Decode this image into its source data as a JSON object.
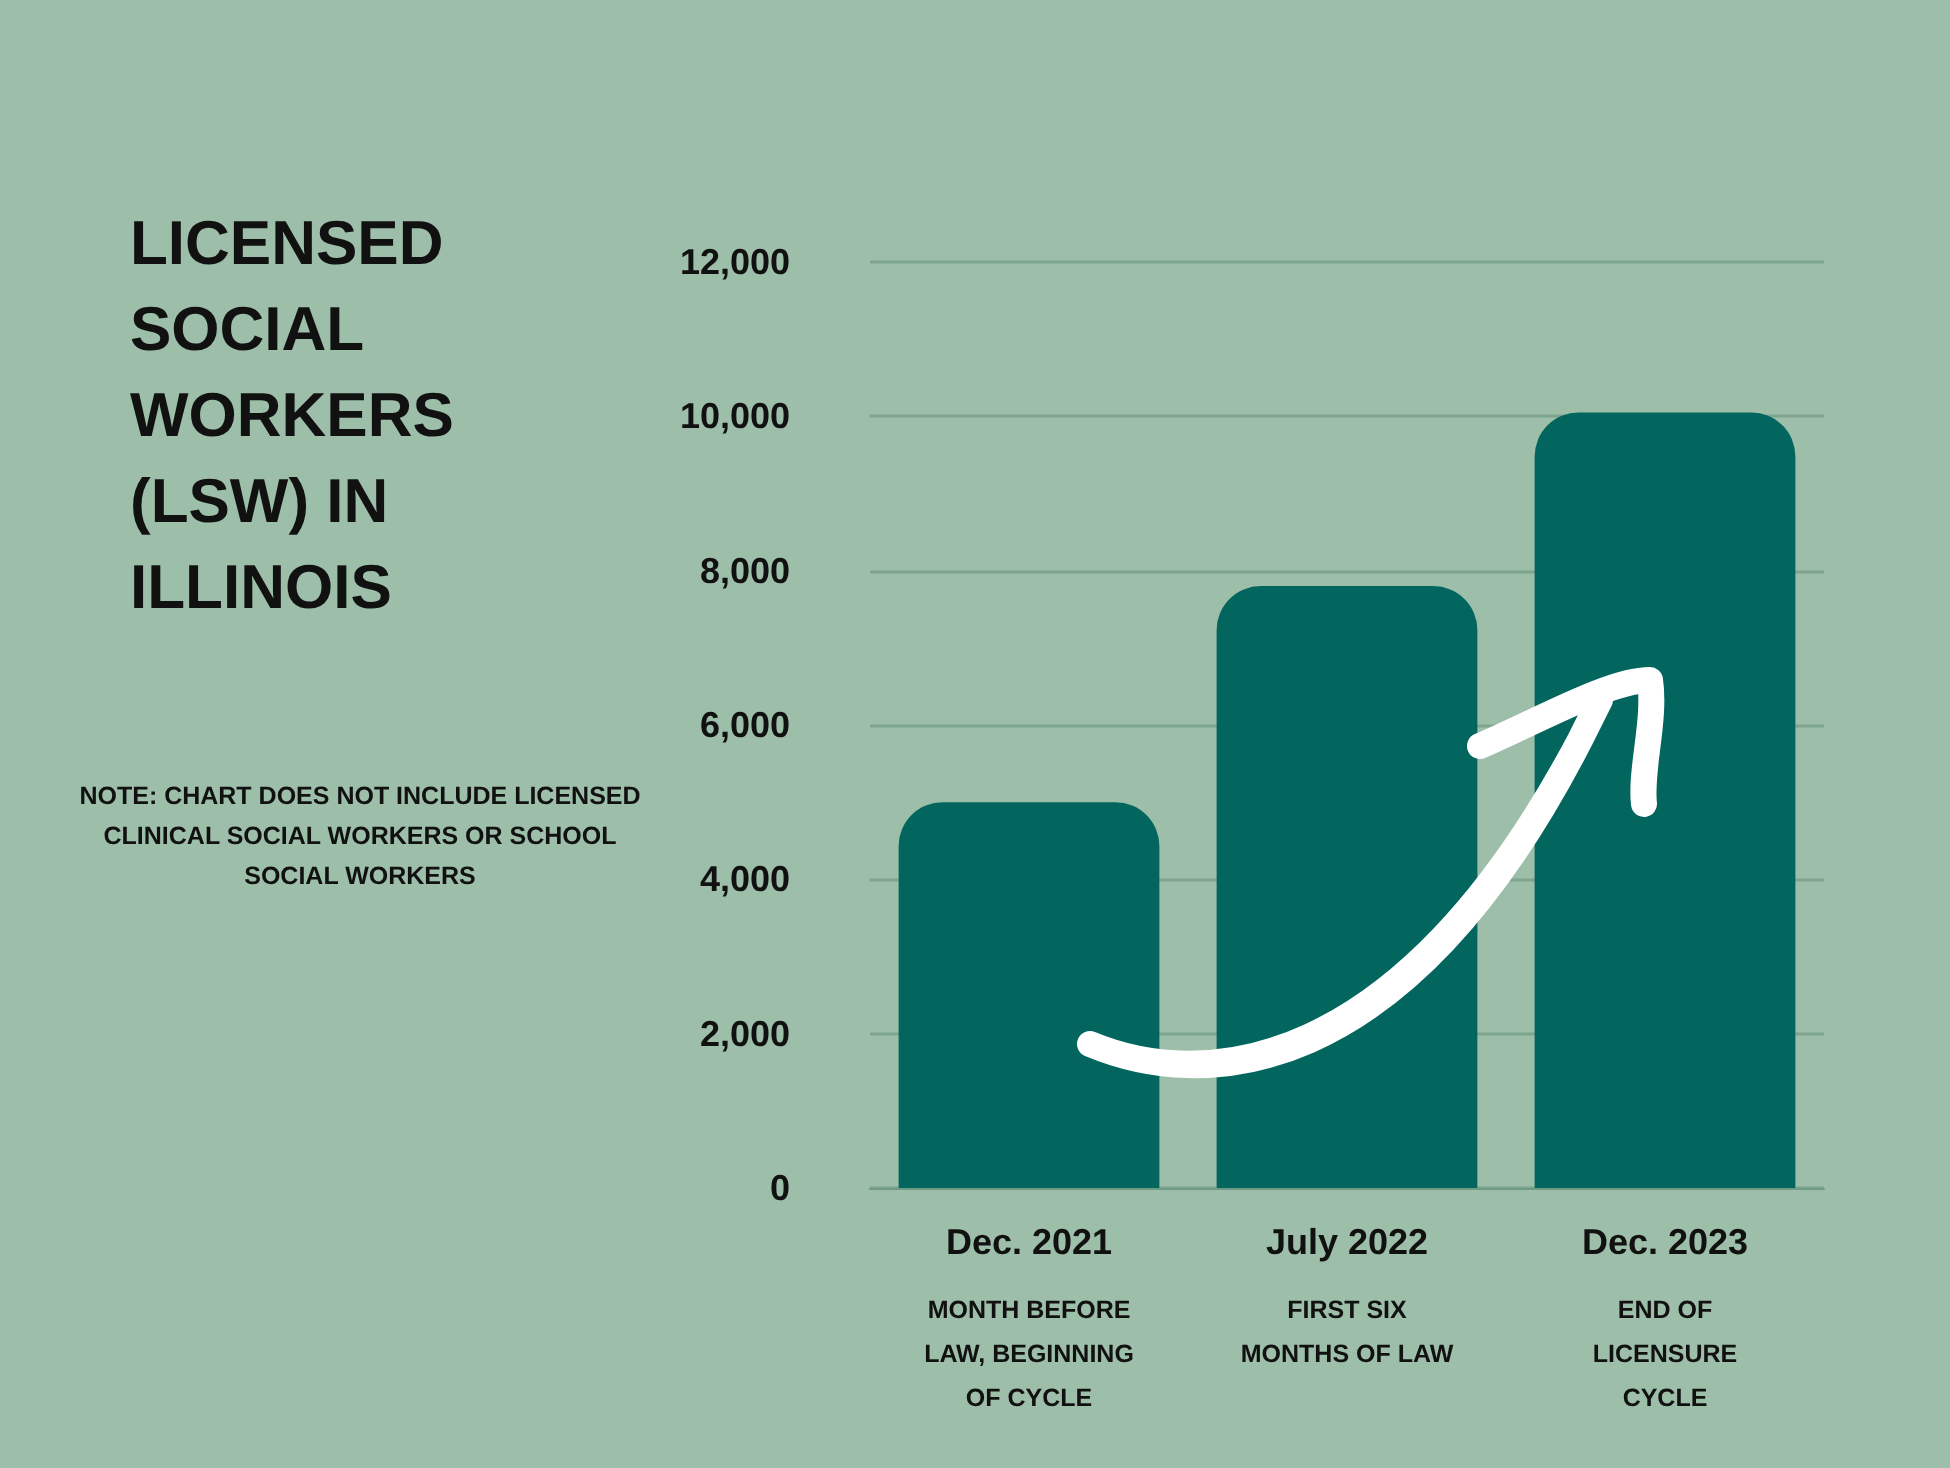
{
  "chart_data": {
    "type": "bar",
    "title": "LICENSED SOCIAL WORKERS (LSW) IN ILLINOIS",
    "annotations": [
      "NOTE: CHART DOES NOT INCLUDE LICENSED CLINICAL SOCIAL WORKERS OR SCHOOL SOCIAL WORKERS"
    ],
    "categories": [
      "Dec. 2021\nMONTH BEFORE\nLAW, BEGINNING\nOF CYCLE",
      "July 2022\nFIRST SIX\nMONTHS OF LAW",
      "Dec. 2023\nEND OF\nLICENSURE\nCYCLE"
    ],
    "values": [
      5000,
      7800,
      10050
    ],
    "color": "#02665f",
    "ylim": [
      0,
      12000
    ],
    "yticks": [
      0,
      {
        "value": 2000,
        "label": "2,000"
      },
      {
        "value": 4000,
        "label": "4,000"
      },
      {
        "value": 6000,
        "label": "6,000"
      },
      {
        "value": 8000,
        "label": "8,000"
      },
      {
        "value": 10000,
        "label": "10,000"
      },
      {
        "value": 12000,
        "label": "12,000"
      }
    ],
    "grid": "y"
  }
}
